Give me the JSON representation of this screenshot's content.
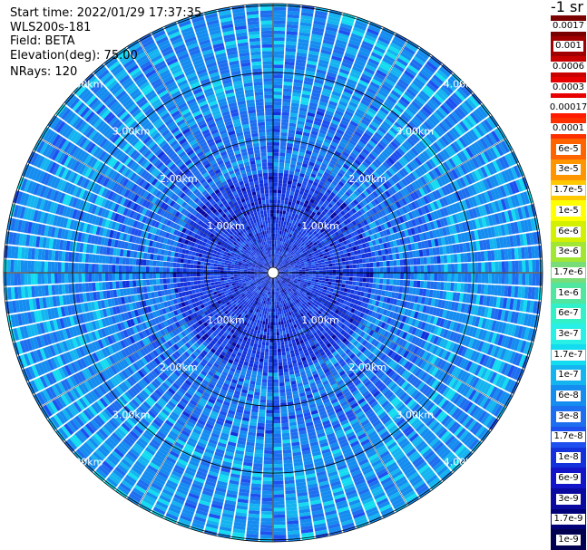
{
  "header": {
    "start_time": "Start time: 2022/01/29 17:37:35",
    "instrument": "WLS200s-181",
    "field": "Field: BETA",
    "elevation": "Elevation(deg): 75.00",
    "nrays": "NRays: 120"
  },
  "colorbar": {
    "unit": "-1 sr",
    "levels": [
      {
        "label": "0.0017",
        "color": "#7a0000"
      },
      {
        "label": "0.001",
        "color": "#a00000"
      },
      {
        "label": "0.0006",
        "color": "#c80000"
      },
      {
        "label": "0.0003",
        "color": "#e80000"
      },
      {
        "label": "0.00017",
        "color": "#ffffff"
      },
      {
        "label": "0.0001",
        "color": "#ff3000"
      },
      {
        "label": "6e-5",
        "color": "#ff6400"
      },
      {
        "label": "3e-5",
        "color": "#ff9600"
      },
      {
        "label": "1.7e-5",
        "color": "#ffc800"
      },
      {
        "label": "1e-5",
        "color": "#ffff00"
      },
      {
        "label": "6e-6",
        "color": "#d2f000"
      },
      {
        "label": "3e-6",
        "color": "#a0e632"
      },
      {
        "label": "1.7e-6",
        "color": "#78dc78"
      },
      {
        "label": "1e-6",
        "color": "#50e6a0"
      },
      {
        "label": "6e-7",
        "color": "#32f0c8"
      },
      {
        "label": "3e-7",
        "color": "#28f0e6"
      },
      {
        "label": "1.7e-7",
        "color": "#14dcf0"
      },
      {
        "label": "1e-7",
        "color": "#14b4f0"
      },
      {
        "label": "6e-8",
        "color": "#148cf0"
      },
      {
        "label": "3e-8",
        "color": "#1e6ef0"
      },
      {
        "label": "1.7e-8",
        "color": "#1e50f0"
      },
      {
        "label": "1e-8",
        "color": "#1432dc"
      },
      {
        "label": "6e-9",
        "color": "#1414c8"
      },
      {
        "label": "3e-9",
        "color": "#0a0aa0"
      },
      {
        "label": "1.7e-9",
        "color": "#000078"
      },
      {
        "label": "1e-9",
        "color": "#000050"
      }
    ]
  },
  "chart_data": {
    "type": "heatmap",
    "projection": "polar PPI scan",
    "nrays": 120,
    "field": "BETA",
    "elevation_deg": 75.0,
    "range_rings_km": [
      1.0,
      2.0,
      3.0,
      4.0
    ],
    "range_ring_labels": [
      "1.00km",
      "2.00km",
      "3.00km",
      "4.00km"
    ],
    "max_range_km": 4.0,
    "value_distribution": [
      {
        "range_km": [
          0.0,
          1.5
        ],
        "typical": "1e-8",
        "range": [
          "3e-9",
          "3e-8"
        ]
      },
      {
        "range_km": [
          1.5,
          2.5
        ],
        "typical": "6e-8",
        "range": [
          "1e-8",
          "1.7e-7"
        ]
      },
      {
        "range_km": [
          2.5,
          4.0
        ],
        "typical": "6e-8",
        "range": [
          "3e-8",
          "3e-7"
        ]
      }
    ]
  }
}
